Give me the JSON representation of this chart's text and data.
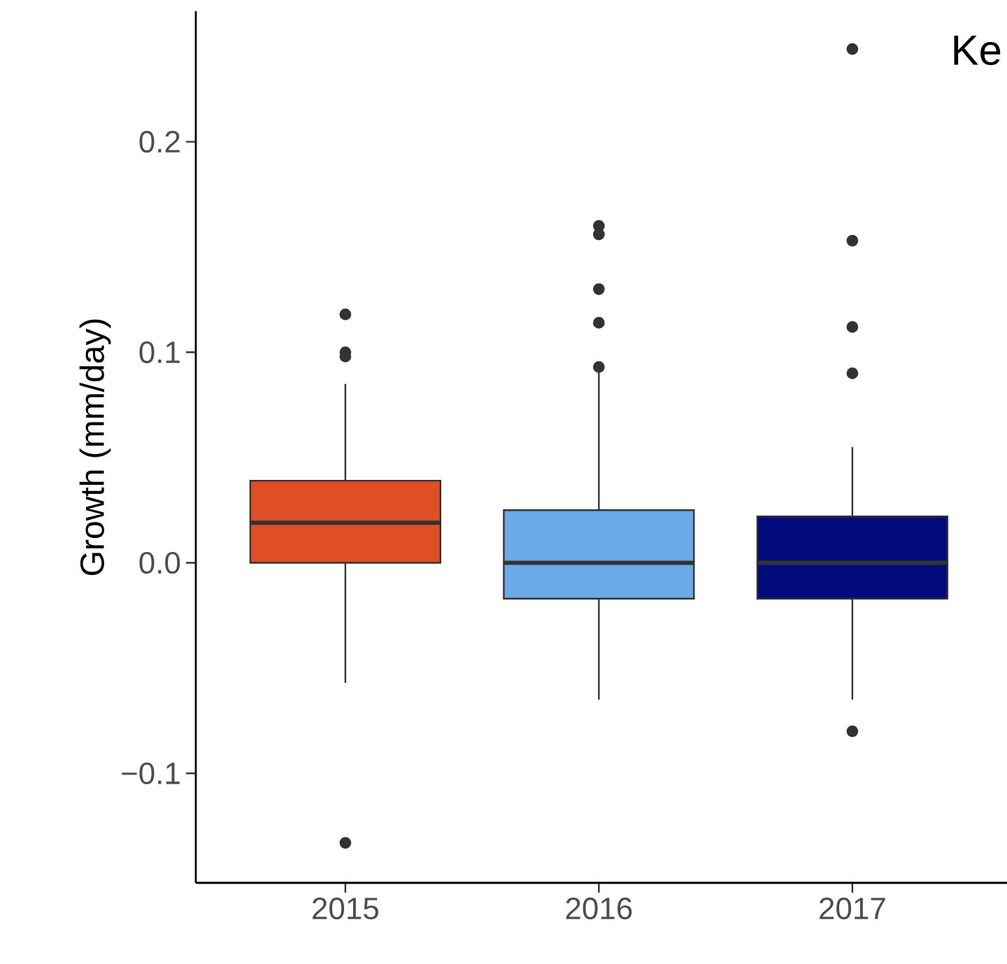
{
  "chart_data": {
    "type": "box",
    "ylabel": "Growth (mm/day)",
    "categories": [
      "2015",
      "2016",
      "2017"
    ],
    "colors": [
      "#e04e25",
      "#6aaae8",
      "#000a7a"
    ],
    "boxes": [
      {
        "low": -0.057,
        "q1": 0.0,
        "median": 0.019,
        "q3": 0.039,
        "high": 0.085,
        "outliers": [
          0.118,
          0.1,
          0.098,
          -0.133
        ]
      },
      {
        "low": -0.065,
        "q1": -0.017,
        "median": 0.0,
        "q3": 0.025,
        "high": 0.092,
        "outliers": [
          0.16,
          0.156,
          0.13,
          0.114,
          0.093
        ]
      },
      {
        "low": -0.065,
        "q1": -0.017,
        "median": 0.0,
        "q3": 0.022,
        "high": 0.055,
        "outliers": [
          0.244,
          0.153,
          0.112,
          0.09,
          -0.08
        ]
      }
    ],
    "ylim": [
      -0.152,
      0.262
    ],
    "yticks": [
      {
        "value": -0.1,
        "label": "−0.1"
      },
      {
        "value": 0.0,
        "label": "0.0"
      },
      {
        "value": 0.1,
        "label": "0.1"
      },
      {
        "value": 0.2,
        "label": "0.2"
      }
    ],
    "annotations": [
      "Ke"
    ]
  }
}
